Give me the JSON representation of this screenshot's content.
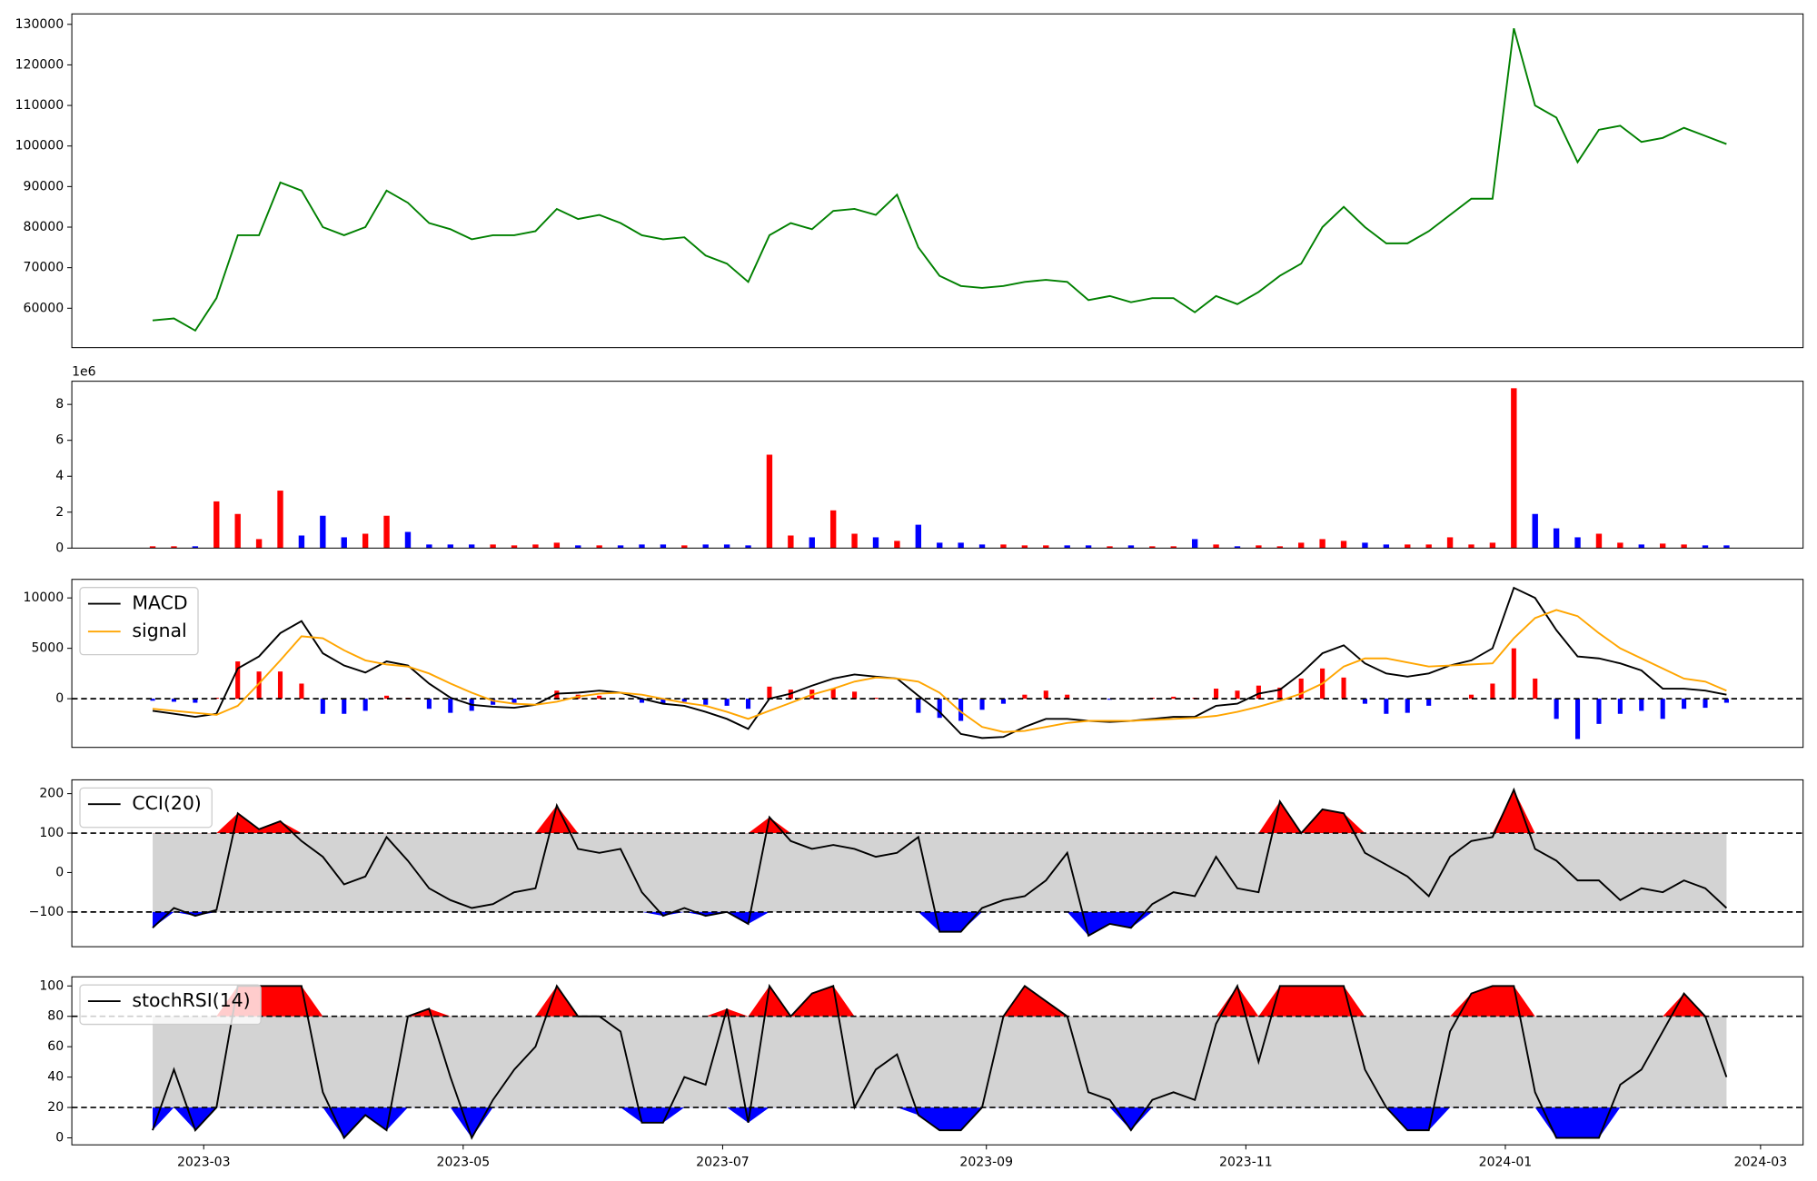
{
  "chart_data": [
    {
      "type": "line",
      "x": [
        47,
        52,
        57,
        62,
        67,
        72,
        77,
        82,
        87,
        92,
        97,
        102,
        107,
        112,
        117,
        122,
        127,
        132,
        137,
        142,
        147,
        152,
        157,
        162,
        167,
        172,
        177,
        182,
        187,
        192,
        197,
        202,
        207,
        212,
        217,
        222,
        227,
        232,
        237,
        242,
        247,
        252,
        257,
        262,
        267,
        272,
        277,
        282,
        287,
        292,
        297,
        302,
        307,
        312,
        317,
        322,
        327,
        332,
        337,
        342,
        347,
        352,
        357,
        362,
        367,
        372,
        377,
        382,
        387,
        392,
        397,
        402,
        407,
        412,
        417
      ],
      "xlim": [
        28,
        435
      ],
      "series": [
        {
          "color": "#008000",
          "values": [
            57000,
            57500,
            54500,
            62500,
            78000,
            78000,
            91000,
            89000,
            80000,
            78000,
            80000,
            89000,
            86000,
            81000,
            79500,
            77000,
            78000,
            78000,
            79000,
            84500,
            82000,
            83000,
            81000,
            78000,
            77000,
            77500,
            73000,
            71000,
            66500,
            78000,
            81000,
            79500,
            84000,
            84500,
            83000,
            88000,
            75000,
            68000,
            65500,
            65000,
            65500,
            66500,
            67000,
            66500,
            62000,
            63000,
            61500,
            62500,
            62500,
            59000,
            63000,
            61000,
            64000,
            68000,
            71000,
            80000,
            85000,
            80000,
            76000,
            76000,
            79000,
            83000,
            87000,
            87000,
            129000,
            110000,
            107000,
            96000,
            104000,
            105000,
            101000,
            102000,
            104500,
            102500,
            100500
          ]
        }
      ],
      "ylim": [
        50290,
        132570
      ],
      "yticks": [
        60000,
        70000,
        80000,
        90000,
        100000,
        110000,
        120000,
        130000
      ]
    },
    {
      "type": "bar",
      "offset_text": "1e6",
      "up_color": "#ff0000",
      "down_color": "#0000ff",
      "values": [
        100000,
        100000,
        100000,
        2600000,
        1900000,
        500000,
        3200000,
        700000,
        1800000,
        600000,
        800000,
        1800000,
        900000,
        200000,
        200000,
        200000,
        200000,
        150000,
        200000,
        300000,
        150000,
        150000,
        150000,
        200000,
        200000,
        150000,
        200000,
        200000,
        150000,
        5200000,
        700000,
        600000,
        2100000,
        800000,
        600000,
        400000,
        1300000,
        300000,
        300000,
        200000,
        200000,
        150000,
        150000,
        150000,
        150000,
        100000,
        150000,
        100000,
        100000,
        500000,
        200000,
        100000,
        150000,
        100000,
        300000,
        500000,
        400000,
        300000,
        200000,
        200000,
        200000,
        600000,
        200000,
        300000,
        8900000,
        1900000,
        1100000,
        600000,
        800000,
        300000,
        200000,
        250000,
        200000,
        150000,
        150000
      ],
      "ylim": [
        0,
        9290000
      ],
      "yticks": [
        {
          "value": 0,
          "label": "0"
        },
        {
          "value": 2000000,
          "label": "2"
        },
        {
          "value": 4000000,
          "label": "4"
        },
        {
          "value": 6000000,
          "label": "6"
        },
        {
          "value": 8000000,
          "label": "8"
        }
      ]
    },
    {
      "type": "macd",
      "series": [
        {
          "name": "MACD",
          "color": "#000000",
          "values": [
            -1200,
            -1500,
            -1800,
            -1500,
            3000,
            4200,
            6500,
            7700,
            4500,
            3300,
            2600,
            3700,
            3300,
            1500,
            100,
            -600,
            -800,
            -900,
            -600,
            500,
            600,
            800,
            600,
            0,
            -500,
            -700,
            -1300,
            -2000,
            -3000,
            0,
            500,
            1300,
            2000,
            2400,
            2200,
            2000,
            300,
            -1300,
            -3500,
            -3900,
            -3800,
            -2800,
            -2000,
            -2000,
            -2200,
            -2300,
            -2200,
            -2000,
            -1800,
            -1800,
            -700,
            -500,
            500,
            900,
            2500,
            4500,
            5300,
            3500,
            2500,
            2200,
            2500,
            3300,
            3800,
            5000,
            11000,
            10000,
            6800,
            4200,
            4000,
            3500,
            2800,
            1000,
            1000,
            800,
            400
          ]
        },
        {
          "name": "signal",
          "color": "#ffa500",
          "values": [
            -1000,
            -1200,
            -1400,
            -1600,
            -700,
            1500,
            3800,
            6200,
            6000,
            4800,
            3800,
            3400,
            3200,
            2500,
            1500,
            600,
            -200,
            -500,
            -600,
            -300,
            200,
            500,
            600,
            400,
            0,
            -400,
            -700,
            -1300,
            -2000,
            -1200,
            -400,
            400,
            1000,
            1700,
            2100,
            2000,
            1700,
            600,
            -1300,
            -2800,
            -3300,
            -3200,
            -2800,
            -2400,
            -2200,
            -2200,
            -2200,
            -2100,
            -2000,
            -1900,
            -1700,
            -1300,
            -800,
            -200,
            500,
            1500,
            3200,
            4000,
            4000,
            3600,
            3200,
            3300,
            3400,
            3500,
            6000,
            8000,
            8800,
            8200,
            6500,
            5000,
            4000,
            3000,
            2000,
            1700,
            800
          ]
        }
      ],
      "histogram": [
        -200,
        -300,
        -400,
        100,
        3700,
        2700,
        2700,
        1500,
        -1500,
        -1500,
        -1200,
        300,
        100,
        -1000,
        -1400,
        -1200,
        -600,
        -400,
        0,
        800,
        400,
        300,
        0,
        -400,
        -500,
        -300,
        -600,
        -700,
        -1000,
        1200,
        900,
        900,
        1000,
        700,
        100,
        0,
        -1400,
        -1900,
        -2200,
        -1100,
        -500,
        400,
        800,
        400,
        0,
        -100,
        0,
        100,
        200,
        100,
        1000,
        800,
        1300,
        1100,
        2000,
        3000,
        2100,
        -500,
        -1500,
        -1400,
        -700,
        0,
        400,
        1500,
        5000,
        2000,
        -2000,
        -4000,
        -2500,
        -1500,
        -1200,
        -2000,
        -1000,
        -900,
        -400
      ],
      "pos_color": "#ff0000",
      "neg_color": "#0000ff",
      "levels": [
        0
      ],
      "ylim": [
        -4830,
        11840
      ],
      "yticks": [
        0,
        5000,
        10000
      ]
    },
    {
      "type": "band",
      "series": [
        {
          "name": "CCI(20)",
          "color": "#000000",
          "values": [
            -140,
            -90,
            -110,
            -95,
            150,
            110,
            130,
            80,
            40,
            -30,
            -10,
            90,
            30,
            -40,
            -70,
            -90,
            -80,
            -50,
            -40,
            170,
            60,
            50,
            60,
            -50,
            -110,
            -90,
            -110,
            -100,
            -130,
            140,
            80,
            60,
            70,
            60,
            40,
            50,
            90,
            -150,
            -150,
            -90,
            -70,
            -60,
            -20,
            50,
            -160,
            -130,
            -140,
            -80,
            -50,
            -60,
            40,
            -40,
            -50,
            180,
            100,
            160,
            150,
            50,
            20,
            -10,
            -60,
            40,
            80,
            90,
            210,
            60,
            30,
            -20,
            -20,
            -70,
            -40,
            -50,
            -20,
            -40,
            -90
          ]
        }
      ],
      "levels": [
        100,
        -100
      ],
      "band_color": "#d3d3d3",
      "over_color": "#ff0000",
      "under_color": "#0000ff",
      "ylim": [
        -188,
        235
      ],
      "yticks": [
        {
          "value": -100,
          "label": "−100"
        },
        0,
        100,
        200
      ]
    },
    {
      "type": "band",
      "series": [
        {
          "name": "stochRSI(14)",
          "color": "#000000",
          "values": [
            5,
            45,
            5,
            20,
            100,
            100,
            100,
            100,
            30,
            0,
            15,
            5,
            80,
            85,
            40,
            0,
            25,
            45,
            60,
            100,
            80,
            80,
            70,
            10,
            10,
            40,
            35,
            85,
            10,
            100,
            80,
            95,
            100,
            20,
            45,
            55,
            15,
            5,
            5,
            20,
            80,
            100,
            90,
            80,
            30,
            25,
            5,
            25,
            30,
            25,
            75,
            100,
            50,
            100,
            100,
            100,
            100,
            45,
            20,
            5,
            5,
            70,
            95,
            100,
            100,
            30,
            0,
            0,
            0,
            35,
            45,
            70,
            95,
            80,
            40
          ]
        }
      ],
      "levels": [
        80,
        20
      ],
      "band_color": "#d3d3d3",
      "over_color": "#ff0000",
      "under_color": "#0000ff",
      "ylim": [
        -4.6,
        106
      ],
      "yticks": [
        0,
        20,
        40,
        60,
        80,
        100
      ],
      "xticks": [
        {
          "value": 59,
          "label": "2023-03"
        },
        {
          "value": 120,
          "label": "2023-05"
        },
        {
          "value": 181,
          "label": "2023-07"
        },
        {
          "value": 243,
          "label": "2023-09"
        },
        {
          "value": 304,
          "label": "2023-11"
        },
        {
          "value": 365,
          "label": "2024-01"
        },
        {
          "value": 425,
          "label": "2024-03"
        }
      ]
    }
  ]
}
